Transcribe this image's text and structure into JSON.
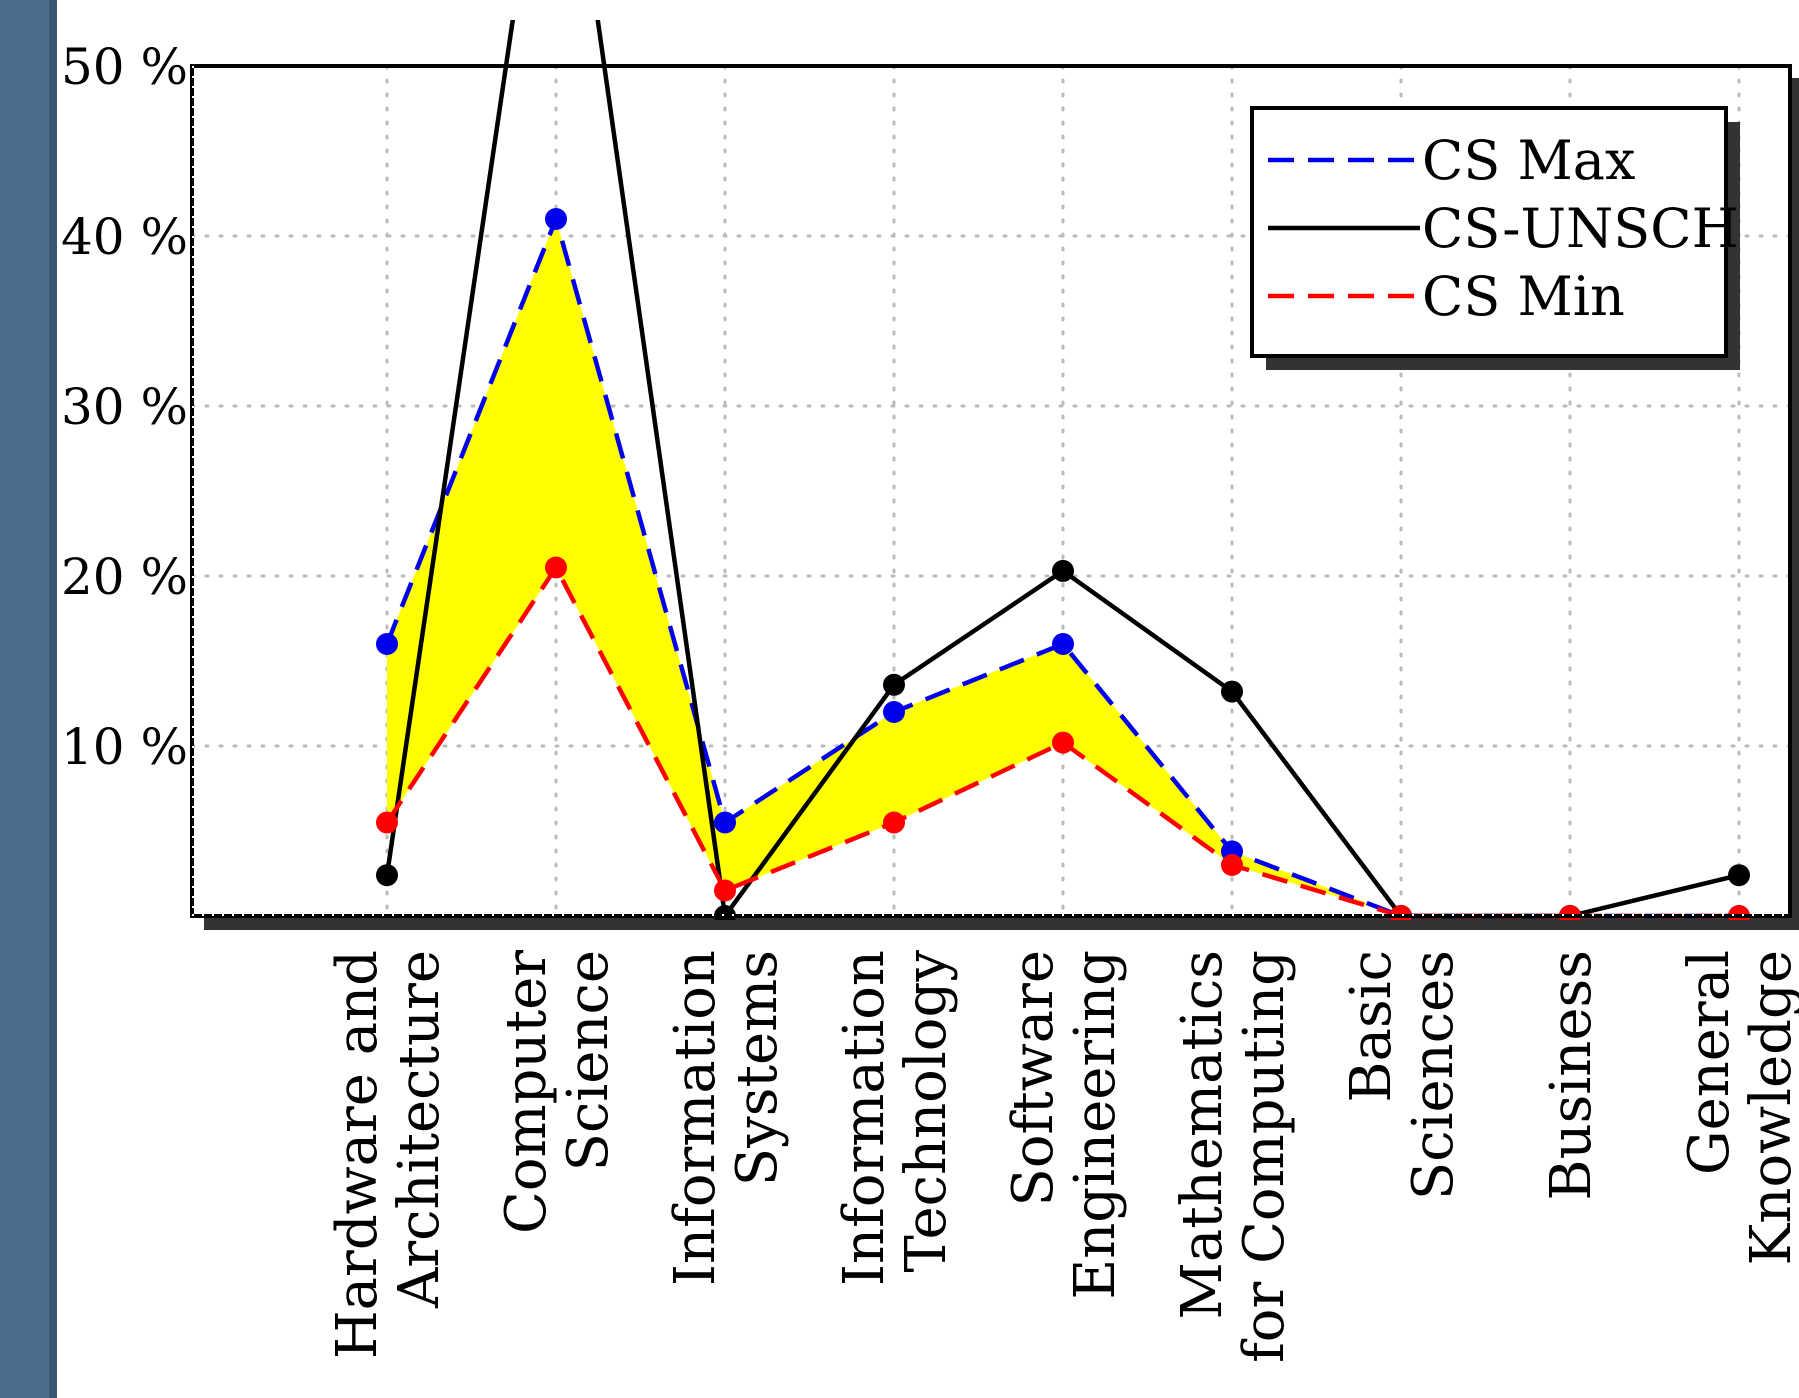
{
  "chart_data": {
    "type": "line",
    "title": "",
    "xlabel": "",
    "ylabel": "",
    "ylim": [
      0,
      50
    ],
    "y_ticks": [
      10,
      20,
      30,
      40,
      50
    ],
    "y_tick_suffix": " %",
    "grid": true,
    "legend_position": "top-right",
    "fill_between": {
      "upper": "CS Max",
      "lower": "CS Min",
      "color": "#ffff00"
    },
    "categories": [
      [
        "Hardware and",
        "Architecture"
      ],
      [
        "Computer",
        "Science"
      ],
      [
        "Information",
        "Systems"
      ],
      [
        "Information",
        "Technology"
      ],
      [
        "Software",
        "Engineering"
      ],
      [
        "Mathematics",
        "for Computing"
      ],
      [
        "Basic",
        "Sciences"
      ],
      [
        "Business"
      ],
      [
        "General",
        "Knowledge"
      ]
    ],
    "series": [
      {
        "name": "CS Max",
        "color": "#0000ee",
        "dash": "dashed",
        "values": [
          16,
          41,
          5.5,
          12,
          16,
          3.8,
          0,
          0,
          0
        ]
      },
      {
        "name": "CS-UNSCH",
        "color": "#000000",
        "dash": "solid",
        "values": [
          2.4,
          70,
          0,
          13.6,
          20.3,
          13.2,
          0,
          0,
          2.4
        ]
      },
      {
        "name": "CS Min",
        "color": "#ff0000",
        "dash": "dashed",
        "values": [
          5.5,
          20.5,
          1.5,
          5.5,
          10.2,
          3,
          0,
          0,
          0
        ]
      }
    ]
  }
}
